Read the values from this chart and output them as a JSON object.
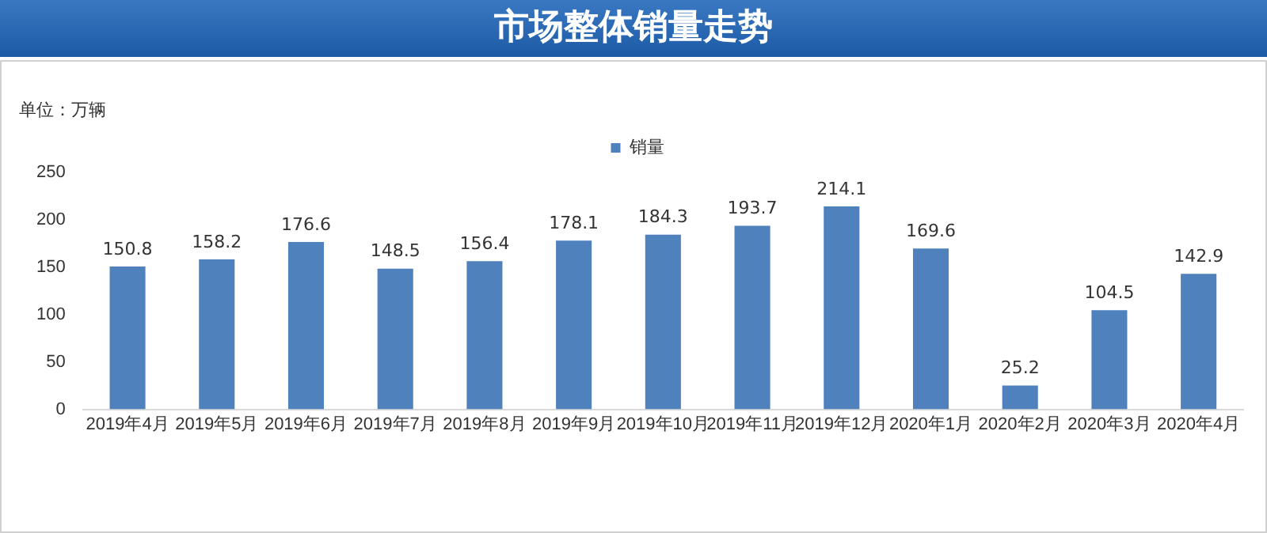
{
  "chart_data": {
    "type": "bar",
    "title": "市场整体销量走势",
    "ylabel": "单位：万辆",
    "categories": [
      "2019年4月",
      "2019年5月",
      "2019年6月",
      "2019年7月",
      "2019年8月",
      "2019年9月",
      "2019年10月",
      "2019年11月",
      "2019年12月",
      "2020年1月",
      "2020年2月",
      "2020年3月",
      "2020年4月"
    ],
    "series": [
      {
        "name": "销量",
        "color": "#4f81bd",
        "values": [
          150.8,
          158.2,
          176.6,
          148.5,
          156.4,
          178.1,
          184.3,
          193.7,
          214.1,
          169.6,
          25.2,
          104.5,
          142.9
        ]
      }
    ],
    "ylim": [
      0,
      250
    ],
    "yticks": [
      0,
      50,
      100,
      150,
      200,
      250
    ],
    "grid": false,
    "legend": "top",
    "data_labels": true
  }
}
